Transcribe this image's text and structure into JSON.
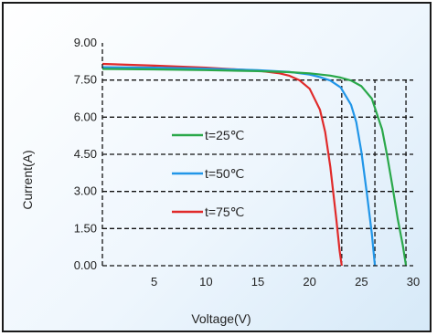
{
  "chart_data": {
    "type": "line",
    "title": "",
    "xlabel": "Voltage(V)",
    "ylabel": "Current(A)",
    "xlim": [
      0,
      30
    ],
    "ylim": [
      0,
      9
    ],
    "x_ticks": [
      "5",
      "10",
      "15",
      "20",
      "25",
      "30"
    ],
    "x_tick_values": [
      5,
      10,
      15,
      20,
      25,
      30
    ],
    "y_ticks": [
      "0.00",
      "1.50",
      "3.00",
      "4.50",
      "6.00",
      "7.50",
      "9.00"
    ],
    "y_tick_values": [
      0,
      1.5,
      3,
      4.5,
      6,
      7.5,
      9
    ],
    "grid": "dashed horizontal lines at y ticks; dashed vertical lines at each curve's open-circuit voltage",
    "legend_position": "center-left",
    "series": [
      {
        "name": "t=25℃",
        "color": "#2aa84a",
        "x": [
          0,
          5,
          10,
          15,
          18,
          20,
          22,
          23,
          24,
          25,
          26,
          27,
          27.5,
          28,
          28.5,
          29,
          29.3
        ],
        "y": [
          7.95,
          7.93,
          7.9,
          7.86,
          7.82,
          7.77,
          7.68,
          7.6,
          7.48,
          7.25,
          6.75,
          5.5,
          4.4,
          3.2,
          1.9,
          0.8,
          0
        ]
      },
      {
        "name": "t=50℃",
        "color": "#2196e8",
        "x": [
          0,
          5,
          10,
          15,
          18,
          20,
          21,
          22,
          23,
          24,
          24.5,
          25,
          25.5,
          26,
          26.3
        ],
        "y": [
          8.02,
          8.0,
          7.96,
          7.9,
          7.83,
          7.72,
          7.62,
          7.48,
          7.2,
          6.5,
          5.8,
          4.6,
          3.0,
          1.3,
          0
        ]
      },
      {
        "name": "t=75℃",
        "color": "#e02a2a",
        "x": [
          0,
          5,
          10,
          15,
          17,
          18,
          19,
          20,
          21,
          21.5,
          22,
          22.3,
          22.6,
          22.9,
          23.1
        ],
        "y": [
          8.15,
          8.08,
          8.0,
          7.88,
          7.78,
          7.68,
          7.5,
          7.15,
          6.3,
          5.4,
          4.0,
          2.9,
          1.8,
          0.6,
          0
        ]
      }
    ]
  }
}
